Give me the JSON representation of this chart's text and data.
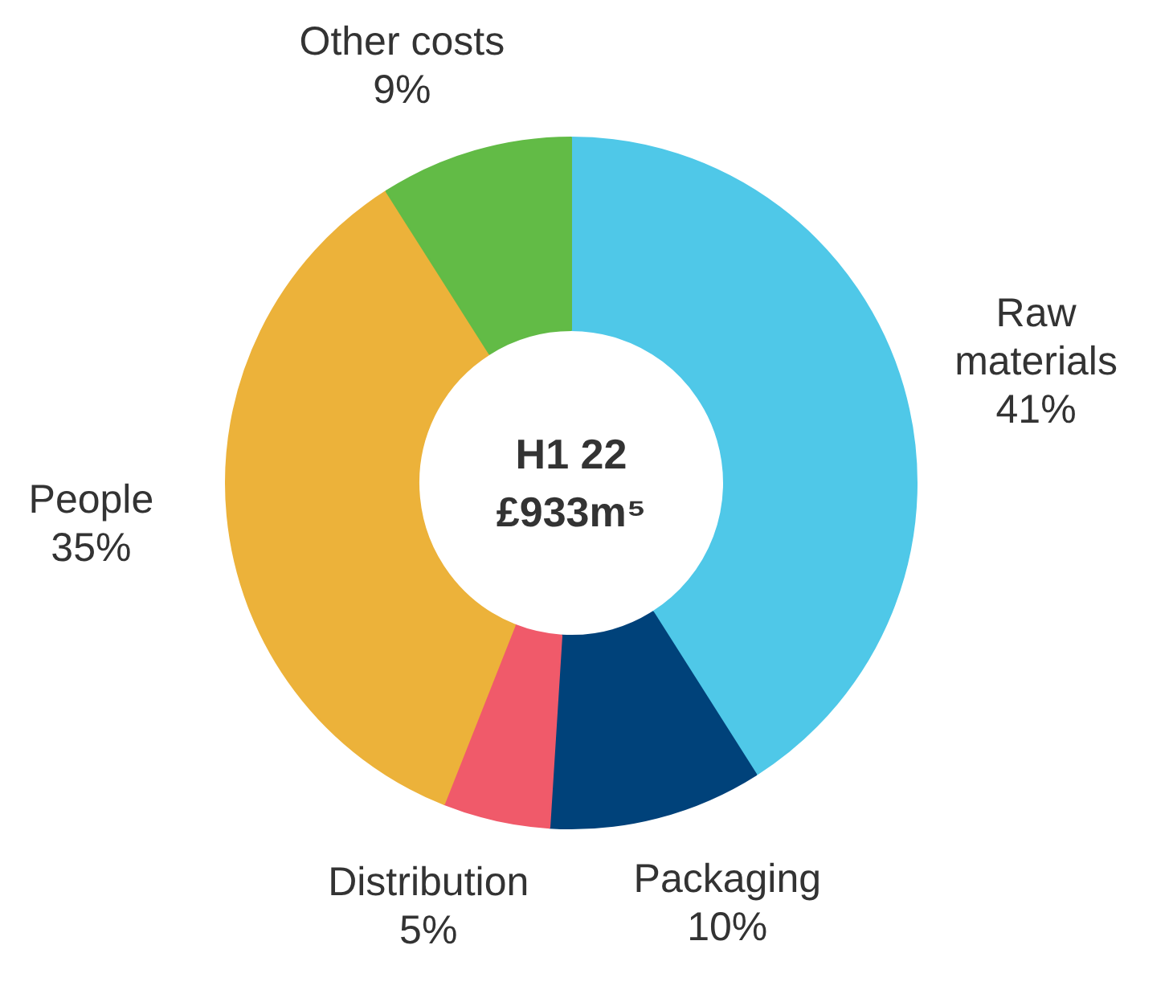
{
  "chart_data": {
    "type": "donut",
    "title": "H1 22",
    "subtitle": "£933m⁵",
    "categories": [
      "Raw materials",
      "Packaging",
      "Distribution",
      "People",
      "Other costs"
    ],
    "values": [
      41,
      10,
      5,
      35,
      9
    ],
    "colors": [
      "#4fc8e8",
      "#00427a",
      "#f05a6a",
      "#ecb23a",
      "#62bb46"
    ],
    "value_labels": [
      "41%",
      "10%",
      "5%",
      "35%",
      "9%"
    ]
  }
}
